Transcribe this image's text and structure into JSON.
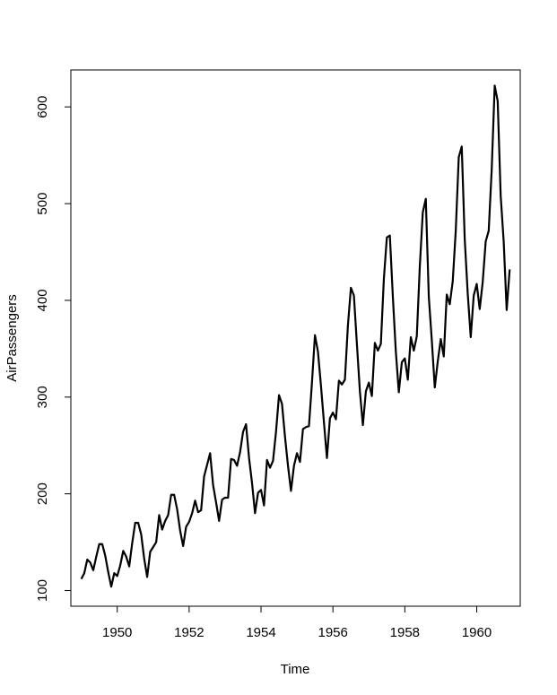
{
  "chart_data": {
    "type": "line",
    "xlabel": "Time",
    "ylabel": "AirPassengers",
    "xlim": [
      1948.71,
      1961.21
    ],
    "ylim": [
      83.8,
      638.2
    ],
    "x_ticks": [
      1950,
      1952,
      1954,
      1956,
      1958,
      1960
    ],
    "x_tick_labels": [
      "1950",
      "1952",
      "1954",
      "1956",
      "1958",
      "1960"
    ],
    "y_ticks": [
      100,
      200,
      300,
      400,
      500,
      600
    ],
    "y_tick_labels": [
      "100",
      "200",
      "300",
      "400",
      "500",
      "600"
    ],
    "x_start": 1949,
    "frequency": 12,
    "series": [
      {
        "values": [
          112,
          118,
          132,
          129,
          121,
          135,
          148,
          148,
          136,
          119,
          104,
          118,
          115,
          126,
          141,
          135,
          125,
          149,
          170,
          170,
          158,
          133,
          114,
          140,
          145,
          150,
          178,
          163,
          172,
          178,
          199,
          199,
          184,
          162,
          146,
          166,
          171,
          180,
          193,
          181,
          183,
          218,
          230,
          242,
          209,
          191,
          172,
          194,
          196,
          196,
          236,
          235,
          229,
          243,
          264,
          272,
          237,
          211,
          180,
          201,
          204,
          188,
          235,
          227,
          234,
          264,
          302,
          293,
          259,
          229,
          203,
          229,
          242,
          233,
          267,
          269,
          270,
          315,
          364,
          347,
          312,
          274,
          237,
          278,
          284,
          277,
          317,
          313,
          318,
          374,
          413,
          405,
          355,
          306,
          271,
          306,
          315,
          301,
          356,
          348,
          355,
          422,
          465,
          467,
          404,
          347,
          305,
          336,
          340,
          318,
          362,
          348,
          363,
          435,
          491,
          505,
          404,
          359,
          310,
          337,
          360,
          342,
          406,
          396,
          420,
          472,
          548,
          559,
          463,
          407,
          362,
          405,
          417,
          391,
          419,
          461,
          472,
          535,
          622,
          606,
          508,
          461,
          390,
          432
        ]
      }
    ],
    "line_color": "#000000",
    "grid": false
  }
}
